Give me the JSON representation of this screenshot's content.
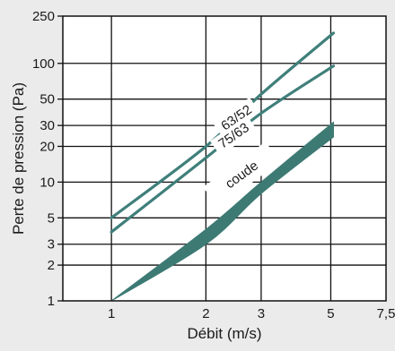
{
  "chart_data": {
    "type": "line",
    "title": "",
    "xlabel": "Débit (m/s)",
    "ylabel": "Perte de pression (Pa)",
    "x_scale": "log",
    "y_scale": "log",
    "xlim": [
      0.7,
      7.5
    ],
    "ylim": [
      1,
      250
    ],
    "grid": true,
    "x_ticks": [
      {
        "value": 1,
        "label": "1"
      },
      {
        "value": 2,
        "label": "2"
      },
      {
        "value": 3,
        "label": "3"
      },
      {
        "value": 5,
        "label": "5"
      },
      {
        "value": 7.5,
        "label": "7,5"
      }
    ],
    "y_ticks": [
      {
        "value": 1,
        "label": "1"
      },
      {
        "value": 2,
        "label": "2"
      },
      {
        "value": 3,
        "label": "3"
      },
      {
        "value": 5,
        "label": "5"
      },
      {
        "value": 10,
        "label": "10"
      },
      {
        "value": 20,
        "label": "20"
      },
      {
        "value": 30,
        "label": "30"
      },
      {
        "value": 50,
        "label": "50"
      },
      {
        "value": 100,
        "label": "100"
      },
      {
        "value": 250,
        "label": "250"
      }
    ],
    "series": [
      {
        "name": "63/52",
        "color": "#3f7f7a",
        "kind": "line",
        "x": [
          1,
          2,
          3,
          5.1
        ],
        "y": [
          5,
          20,
          55,
          180
        ]
      },
      {
        "name": "75/63",
        "color": "#3f7f7a",
        "kind": "line",
        "x": [
          1,
          2,
          3,
          5.1
        ],
        "y": [
          3.8,
          16,
          38,
          95
        ]
      },
      {
        "name": "coude",
        "color": "#3d7a74",
        "kind": "band",
        "x": [
          1,
          2,
          3,
          5.1
        ],
        "y_upper": [
          1,
          4,
          10,
          32
        ],
        "y_lower": [
          1,
          3,
          8,
          24
        ]
      }
    ]
  }
}
